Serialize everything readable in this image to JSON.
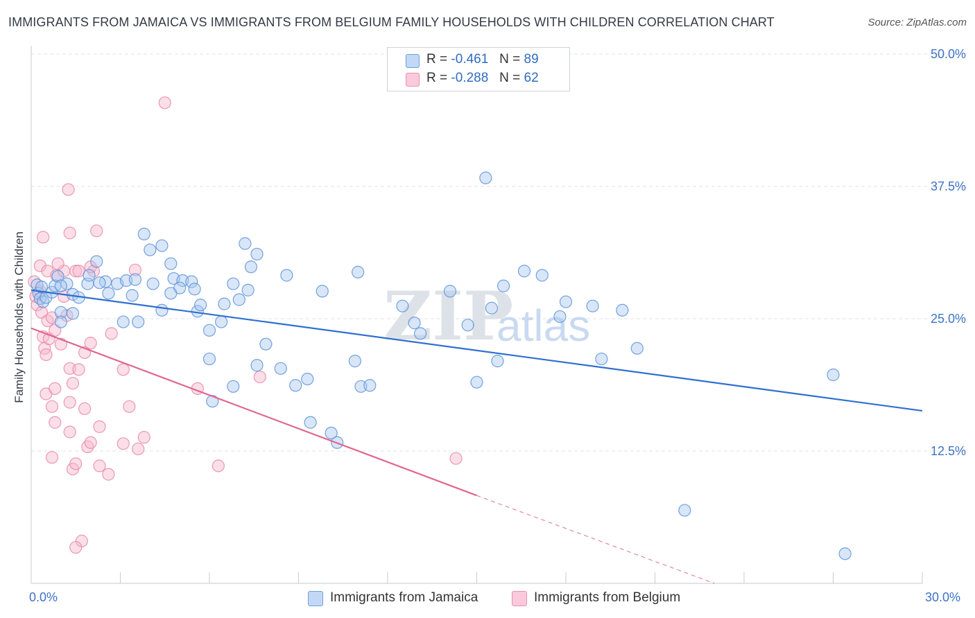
{
  "title": "IMMIGRANTS FROM JAMAICA VS IMMIGRANTS FROM BELGIUM FAMILY HOUSEHOLDS WITH CHILDREN CORRELATION CHART",
  "source": "Source: ZipAtlas.com",
  "watermark": {
    "zip": "ZIP",
    "atlas": "atlas"
  },
  "legend": {
    "jamaica": {
      "r_label": "R =",
      "r_value": "-0.461",
      "n_label": "N =",
      "n_value": "89"
    },
    "belgium": {
      "r_label": "R =",
      "r_value": "-0.288",
      "n_label": "N =",
      "n_value": "62"
    }
  },
  "colors": {
    "jamaica_fill": "#a9c8f0",
    "jamaica_stroke": "#5d93d8",
    "jamaica_line": "#2f6fd0",
    "belgium_fill": "#f6b8cc",
    "belgium_stroke": "#e887a7",
    "belgium_line": "#e0668f",
    "axis_text": "#3d73c4",
    "grid": "#dfe3e8"
  },
  "chart_data": {
    "type": "scatter",
    "title": "IMMIGRANTS FROM JAMAICA VS IMMIGRANTS FROM BELGIUM FAMILY HOUSEHOLDS WITH CHILDREN CORRELATION CHART",
    "xlabel": "",
    "ylabel": "Family Households with Children",
    "xlim": [
      0,
      30
    ],
    "ylim": [
      0,
      50
    ],
    "x_tick_labels": [
      "0.0%",
      "30.0%"
    ],
    "y_ticks": [
      12.5,
      25.0,
      37.5,
      50.0
    ],
    "y_tick_labels": [
      "12.5%",
      "25.0%",
      "37.5%",
      "50.0%"
    ],
    "grid": true,
    "series": [
      {
        "name": "Immigrants from Jamaica",
        "points": [
          [
            0.2,
            28.2
          ],
          [
            0.25,
            27.4
          ],
          [
            0.3,
            26.9
          ],
          [
            0.35,
            28.0
          ],
          [
            0.4,
            26.6
          ],
          [
            0.5,
            27.0
          ],
          [
            0.7,
            27.5
          ],
          [
            0.8,
            28.1
          ],
          [
            0.9,
            29.0
          ],
          [
            1.2,
            28.3
          ],
          [
            1.4,
            27.3
          ],
          [
            1.0,
            25.6
          ],
          [
            1.9,
            28.3
          ],
          [
            2.2,
            30.4
          ],
          [
            2.5,
            28.5
          ],
          [
            1.95,
            29.1
          ],
          [
            1.6,
            27.0
          ],
          [
            2.6,
            27.4
          ],
          [
            2.9,
            28.3
          ],
          [
            3.2,
            28.6
          ],
          [
            3.1,
            24.7
          ],
          [
            3.6,
            24.7
          ],
          [
            3.8,
            33.0
          ],
          [
            4.0,
            31.5
          ],
          [
            4.7,
            30.2
          ],
          [
            4.8,
            28.8
          ],
          [
            5.1,
            28.6
          ],
          [
            5.4,
            28.5
          ],
          [
            5.5,
            27.8
          ],
          [
            5.0,
            27.9
          ],
          [
            5.6,
            25.7
          ],
          [
            5.7,
            26.3
          ],
          [
            3.4,
            27.2
          ],
          [
            2.3,
            28.4
          ],
          [
            1.0,
            28.1
          ],
          [
            1.0,
            24.7
          ],
          [
            4.4,
            25.8
          ],
          [
            4.4,
            31.9
          ],
          [
            6.0,
            23.9
          ],
          [
            7.2,
            32.1
          ],
          [
            7.6,
            31.1
          ],
          [
            7.4,
            29.9
          ],
          [
            7.3,
            27.7
          ],
          [
            7.0,
            26.8
          ],
          [
            6.8,
            28.3
          ],
          [
            6.4,
            24.7
          ],
          [
            6.0,
            21.2
          ],
          [
            6.1,
            17.2
          ],
          [
            6.8,
            18.6
          ],
          [
            7.6,
            20.6
          ],
          [
            8.4,
            20.3
          ],
          [
            8.6,
            29.1
          ],
          [
            8.9,
            18.7
          ],
          [
            9.3,
            19.3
          ],
          [
            9.4,
            15.2
          ],
          [
            10.1,
            14.2
          ],
          [
            10.3,
            13.3
          ],
          [
            10.9,
            21.0
          ],
          [
            11.1,
            18.6
          ],
          [
            11.4,
            18.7
          ],
          [
            12.5,
            26.2
          ],
          [
            12.9,
            24.6
          ],
          [
            14.1,
            27.6
          ],
          [
            14.7,
            24.4
          ],
          [
            15.0,
            19.0
          ],
          [
            15.5,
            26.0
          ],
          [
            15.7,
            21.0
          ],
          [
            15.9,
            28.1
          ],
          [
            16.6,
            29.5
          ],
          [
            17.2,
            29.1
          ],
          [
            17.8,
            25.2
          ],
          [
            18.0,
            26.6
          ],
          [
            18.9,
            26.2
          ],
          [
            19.2,
            21.2
          ],
          [
            19.9,
            25.8
          ],
          [
            20.4,
            22.2
          ],
          [
            15.3,
            38.3
          ],
          [
            11.0,
            29.4
          ],
          [
            9.8,
            27.6
          ],
          [
            7.9,
            22.6
          ],
          [
            4.7,
            27.4
          ],
          [
            4.1,
            28.3
          ],
          [
            3.5,
            28.7
          ],
          [
            1.4,
            25.5
          ],
          [
            22.0,
            6.9
          ],
          [
            27.4,
            2.8
          ],
          [
            27.0,
            19.7
          ],
          [
            13.1,
            23.6
          ],
          [
            6.5,
            26.4
          ]
        ]
      },
      {
        "name": "Immigrants from Belgium",
        "points": [
          [
            0.1,
            28.5
          ],
          [
            0.15,
            27.1
          ],
          [
            0.2,
            26.3
          ],
          [
            0.3,
            27.6
          ],
          [
            0.35,
            25.6
          ],
          [
            0.4,
            23.3
          ],
          [
            0.45,
            22.2
          ],
          [
            0.5,
            21.6
          ],
          [
            0.55,
            24.8
          ],
          [
            0.6,
            23.1
          ],
          [
            0.7,
            25.1
          ],
          [
            0.8,
            23.9
          ],
          [
            1.0,
            22.6
          ],
          [
            1.1,
            27.1
          ],
          [
            1.2,
            25.3
          ],
          [
            1.3,
            20.3
          ],
          [
            1.4,
            18.9
          ],
          [
            1.6,
            20.2
          ],
          [
            1.8,
            21.8
          ],
          [
            2.0,
            22.7
          ],
          [
            0.3,
            30.0
          ],
          [
            0.55,
            29.5
          ],
          [
            0.85,
            29.1
          ],
          [
            1.1,
            29.5
          ],
          [
            1.5,
            29.5
          ],
          [
            2.1,
            29.5
          ],
          [
            0.4,
            32.7
          ],
          [
            1.3,
            33.1
          ],
          [
            2.2,
            33.3
          ],
          [
            1.25,
            37.2
          ],
          [
            1.6,
            29.5
          ],
          [
            2.0,
            29.9
          ],
          [
            3.5,
            29.6
          ],
          [
            4.5,
            45.4
          ],
          [
            0.9,
            30.2
          ],
          [
            0.5,
            17.9
          ],
          [
            0.8,
            18.4
          ],
          [
            0.7,
            16.7
          ],
          [
            1.3,
            17.1
          ],
          [
            1.3,
            14.3
          ],
          [
            1.4,
            10.8
          ],
          [
            1.5,
            11.3
          ],
          [
            0.7,
            11.9
          ],
          [
            0.8,
            15.2
          ],
          [
            1.8,
            16.5
          ],
          [
            1.9,
            12.9
          ],
          [
            2.0,
            13.3
          ],
          [
            2.3,
            14.8
          ],
          [
            3.1,
            13.2
          ],
          [
            3.3,
            16.7
          ],
          [
            3.6,
            12.7
          ],
          [
            3.8,
            13.8
          ],
          [
            5.6,
            18.4
          ],
          [
            6.3,
            11.1
          ],
          [
            7.7,
            19.5
          ],
          [
            2.3,
            11.1
          ],
          [
            2.6,
            10.3
          ],
          [
            1.7,
            4.0
          ],
          [
            1.5,
            3.4
          ],
          [
            14.3,
            11.8
          ],
          [
            2.7,
            23.6
          ],
          [
            3.1,
            20.2
          ]
        ]
      }
    ],
    "trendlines": [
      {
        "series": "Immigrants from Jamaica",
        "x1": 0,
        "y1": 27.7,
        "x2": 30,
        "y2": 16.3,
        "style": "solid"
      },
      {
        "series": "Immigrants from Belgium",
        "x1": 0,
        "y1": 24.1,
        "x2": 15.0,
        "y2": 8.3,
        "style": "solid",
        "dashed_extension_to": [
          23.0,
          0.0
        ]
      }
    ]
  },
  "bottom_legend": {
    "jamaica": "Immigrants from Jamaica",
    "belgium": "Immigrants from Belgium"
  }
}
